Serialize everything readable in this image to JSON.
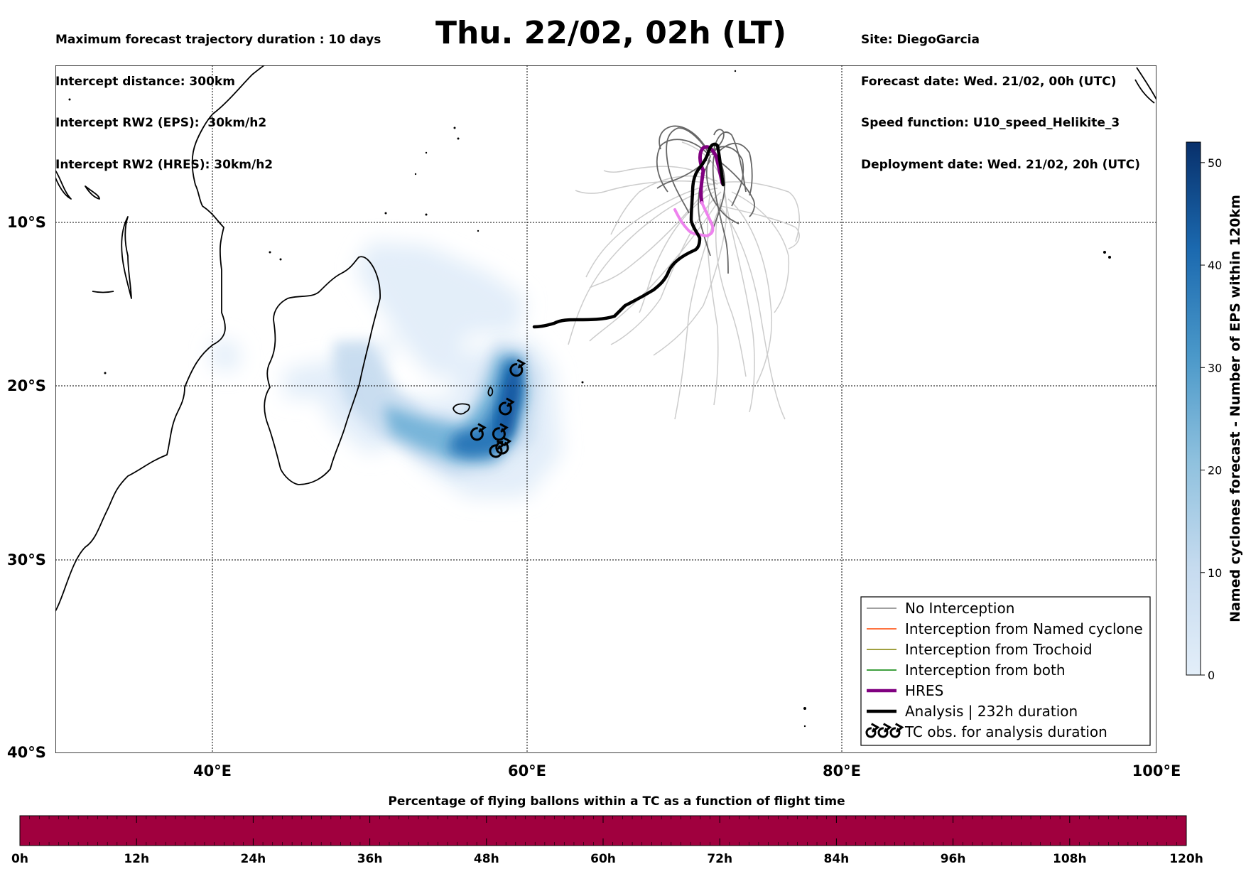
{
  "header": {
    "left_lines": [
      "Maximum forecast trajectory duration : 10 days",
      "Intercept distance: 300km",
      "Intercept RW2 (EPS):  30km/h2",
      "Intercept RW2 (HRES): 30km/h2"
    ],
    "right_lines": [
      "Site: DiegoGarcia",
      "Forecast date: Wed. 21/02, 00h (UTC)",
      "Speed function: U10_speed_Helikite_3",
      "Deployment date: Wed. 21/02, 20h (UTC)"
    ],
    "title": "Thu. 22/02, 02h (LT)"
  },
  "map": {
    "lon_range": [
      30,
      100
    ],
    "lat_range": [
      -40,
      0
    ],
    "lat_ticks": [
      {
        "label": "10°S",
        "lat": -10
      },
      {
        "label": "20°S",
        "lat": -20
      },
      {
        "label": "30°S",
        "lat": -30
      },
      {
        "label": "40°S",
        "lat": -40
      }
    ],
    "lon_ticks": [
      {
        "label": "40°E",
        "lon": 40
      },
      {
        "label": "60°E",
        "lon": 60
      },
      {
        "label": "80°E",
        "lon": 80
      },
      {
        "label": "100°E",
        "lon": 100
      }
    ],
    "colors": {
      "no_interception": "#808080",
      "named_cyclone": "#ff4500",
      "trochoid": "#808000",
      "both": "#008000",
      "hres": "#800080",
      "hres_light": "#ee82ee",
      "analysis": "#000000",
      "ensemble_light": "#cccccc",
      "ensemble_dark": "#666666"
    },
    "tc_obs": [
      [
        59.3,
        -19.0
      ],
      [
        58.6,
        -21.3
      ],
      [
        56.8,
        -22.8
      ],
      [
        58.2,
        -22.8
      ],
      [
        58.0,
        -23.8
      ],
      [
        58.4,
        -23.6
      ]
    ]
  },
  "legend": {
    "items": [
      {
        "label": "No Interception",
        "color": "#808080",
        "style": "thin"
      },
      {
        "label": "Interception from Named cyclone",
        "color": "#ff4500",
        "style": "thin"
      },
      {
        "label": "Interception from Trochoid",
        "color": "#808000",
        "style": "thin"
      },
      {
        "label": "Interception from both",
        "color": "#008000",
        "style": "thin"
      },
      {
        "label": "HRES",
        "color": "#800080",
        "style": "thick"
      },
      {
        "label": "Analysis | 232h duration",
        "color": "#000000",
        "style": "thick"
      },
      {
        "label": "TC obs. for analysis duration",
        "color": "#000000",
        "style": "symbol"
      }
    ]
  },
  "colorbar_right": {
    "label": "Named cyclones forecast - Number of EPS within 120km",
    "ticks": [
      "0",
      "10",
      "20",
      "30",
      "40",
      "50"
    ],
    "max": 52,
    "color_low": "#e3eef9",
    "color_high": "#08306b"
  },
  "colorbar_bottom": {
    "title": "Percentage of flying ballons within a TC as a function of flight time",
    "ticks": [
      "0h",
      "12h",
      "24h",
      "36h",
      "48h",
      "60h",
      "72h",
      "84h",
      "96h",
      "108h",
      "120h"
    ],
    "fill_color": "#a0003e"
  }
}
